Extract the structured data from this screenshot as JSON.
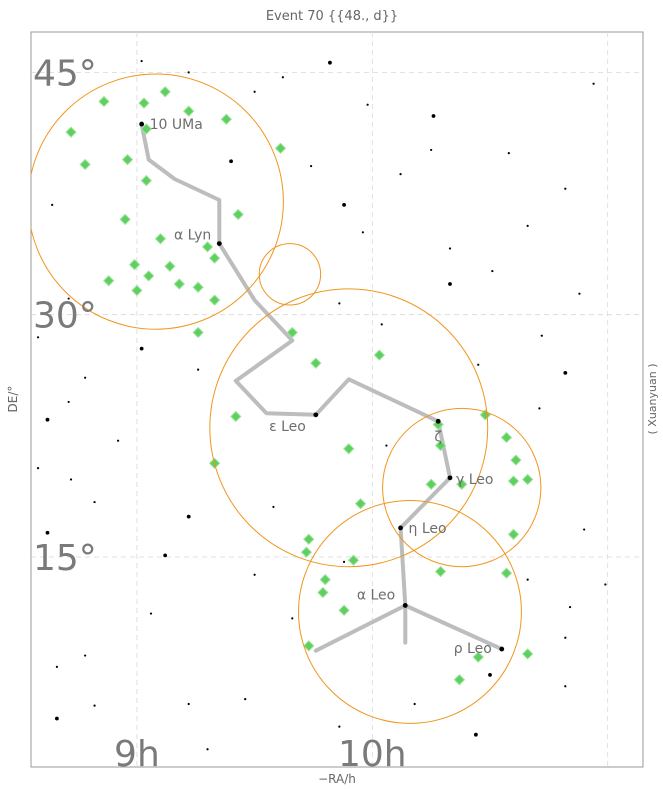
{
  "chart_data": {
    "type": "scatter",
    "title": "Event 70 {{48., d}}",
    "xlabel": "−RA/h",
    "ylabel": "DE/°",
    "side_label": "( Xuanyuan )",
    "ra_range": [
      8.55,
      11.15
    ],
    "de_range": [
      2.0,
      47.5
    ],
    "ra_ticks": [
      {
        "value": 10,
        "label": "10h"
      },
      {
        "value": 9,
        "label": "9h"
      }
    ],
    "de_ticks": [
      {
        "value": 45,
        "label": "45°"
      },
      {
        "value": 30,
        "label": "30°"
      },
      {
        "value": 15,
        "label": "15°"
      }
    ],
    "grid": "on",
    "colors": {
      "circle": "#f0961e",
      "event": "#5fcf5f",
      "line": "#bdbdbd",
      "star": "#000000",
      "grid": "#d8d8d8"
    },
    "named_stars": [
      {
        "label": "10 UMa",
        "ra": 9.02,
        "de": 41.8
      },
      {
        "label": "α Lyn",
        "ra": 9.35,
        "de": 34.4
      },
      {
        "label": "ε Leo",
        "ra": 9.76,
        "de": 23.8
      },
      {
        "label": "ζ",
        "ra": 10.28,
        "de": 23.4
      },
      {
        "label": "γ Leo",
        "ra": 10.33,
        "de": 19.9
      },
      {
        "label": "η Leo",
        "ra": 10.12,
        "de": 16.8
      },
      {
        "label": "α Leo",
        "ra": 10.14,
        "de": 12.0
      },
      {
        "label": "ρ Leo",
        "ra": 10.55,
        "de": 9.3
      }
    ],
    "constellation_lines": [
      [
        [
          9.02,
          41.8
        ],
        [
          9.05,
          39.6
        ],
        [
          9.16,
          38.4
        ],
        [
          9.35,
          37.1
        ],
        [
          9.35,
          34.4
        ],
        [
          9.5,
          30.9
        ],
        [
          9.66,
          28.4
        ],
        [
          9.42,
          25.9
        ],
        [
          9.55,
          23.9
        ],
        [
          9.76,
          23.8
        ],
        [
          9.9,
          26.0
        ],
        [
          10.28,
          23.4
        ],
        [
          10.33,
          19.9
        ],
        [
          10.12,
          16.8
        ],
        [
          10.14,
          12.0
        ],
        [
          10.55,
          9.3
        ]
      ],
      [
        [
          10.14,
          12.0
        ],
        [
          9.76,
          9.2
        ]
      ],
      [
        [
          10.14,
          12.0
        ],
        [
          10.14,
          9.7
        ]
      ]
    ],
    "circles": [
      {
        "ra": 9.08,
        "de": 37.0,
        "radius_deg": 7.9
      },
      {
        "ra": 9.65,
        "de": 32.5,
        "radius_deg": 1.9
      },
      {
        "ra": 9.9,
        "de": 23.0,
        "radius_deg": 8.6
      },
      {
        "ra": 10.38,
        "de": 19.3,
        "radius_deg": 4.9
      },
      {
        "ra": 10.16,
        "de": 11.6,
        "radius_deg": 6.9
      }
    ],
    "event_points": [
      [
        9.12,
        43.8
      ],
      [
        9.03,
        43.1
      ],
      [
        8.86,
        43.2
      ],
      [
        9.22,
        42.6
      ],
      [
        9.38,
        42.1
      ],
      [
        9.04,
        41.5
      ],
      [
        8.72,
        41.3
      ],
      [
        9.61,
        40.3
      ],
      [
        8.96,
        39.6
      ],
      [
        8.78,
        39.3
      ],
      [
        9.04,
        38.3
      ],
      [
        9.43,
        36.2
      ],
      [
        8.95,
        35.9
      ],
      [
        9.1,
        34.7
      ],
      [
        9.3,
        34.2
      ],
      [
        9.33,
        33.5
      ],
      [
        9.14,
        33.0
      ],
      [
        8.99,
        33.1
      ],
      [
        9.05,
        32.4
      ],
      [
        8.88,
        32.1
      ],
      [
        9.18,
        31.9
      ],
      [
        9.26,
        31.7
      ],
      [
        9.0,
        31.5
      ],
      [
        9.33,
        30.9
      ],
      [
        9.26,
        28.9
      ],
      [
        9.66,
        28.9
      ],
      [
        10.03,
        27.5
      ],
      [
        9.76,
        27.0
      ],
      [
        10.48,
        23.8
      ],
      [
        10.28,
        23.2
      ],
      [
        9.42,
        23.7
      ],
      [
        10.57,
        22.4
      ],
      [
        10.29,
        21.9
      ],
      [
        9.9,
        21.7
      ],
      [
        10.61,
        21.0
      ],
      [
        9.33,
        20.8
      ],
      [
        10.66,
        19.8
      ],
      [
        10.6,
        19.7
      ],
      [
        10.38,
        19.5
      ],
      [
        10.25,
        19.5
      ],
      [
        9.95,
        18.3
      ],
      [
        10.6,
        16.4
      ],
      [
        9.73,
        16.1
      ],
      [
        9.72,
        15.3
      ],
      [
        9.92,
        14.8
      ],
      [
        10.57,
        14.0
      ],
      [
        10.29,
        14.1
      ],
      [
        9.8,
        13.6
      ],
      [
        9.79,
        12.8
      ],
      [
        9.88,
        11.7
      ],
      [
        10.66,
        9.0
      ],
      [
        10.45,
        8.8
      ],
      [
        9.73,
        9.5
      ],
      [
        10.37,
        7.4
      ]
    ],
    "background_stars": [
      [
        9.82,
        45.6
      ],
      [
        9.02,
        45.7
      ],
      [
        10.94,
        44.3
      ],
      [
        9.5,
        43.8
      ],
      [
        9.98,
        43.0
      ],
      [
        10.26,
        42.3
      ],
      [
        10.58,
        40.0
      ],
      [
        10.25,
        40.2
      ],
      [
        9.74,
        39.2
      ],
      [
        10.82,
        37.8
      ],
      [
        9.88,
        36.8
      ],
      [
        10.66,
        35.5
      ],
      [
        10.33,
        34.1
      ],
      [
        9.96,
        35.1
      ],
      [
        10.51,
        32.7
      ],
      [
        10.33,
        31.9
      ],
      [
        10.88,
        31.3
      ],
      [
        9.86,
        30.7
      ],
      [
        8.71,
        31.0
      ],
      [
        8.58,
        28.6
      ],
      [
        10.82,
        26.4
      ],
      [
        10.71,
        24.2
      ],
      [
        10.45,
        26.9
      ],
      [
        8.78,
        26.1
      ],
      [
        8.71,
        24.6
      ],
      [
        8.62,
        23.5
      ],
      [
        8.92,
        22.2
      ],
      [
        9.26,
        26.6
      ],
      [
        8.58,
        20.5
      ],
      [
        8.82,
        18.4
      ],
      [
        8.62,
        16.5
      ],
      [
        10.9,
        16.7
      ],
      [
        10.66,
        13.6
      ],
      [
        10.84,
        11.9
      ],
      [
        10.82,
        10.0
      ],
      [
        10.5,
        7.7
      ],
      [
        10.82,
        7.0
      ],
      [
        8.66,
        8.2
      ],
      [
        8.78,
        8.9
      ],
      [
        8.82,
        5.8
      ],
      [
        8.66,
        5.0
      ],
      [
        9.22,
        5.9
      ],
      [
        9.46,
        6.2
      ],
      [
        9.86,
        4.5
      ],
      [
        10.18,
        5.9
      ],
      [
        10.44,
        4.0
      ],
      [
        9.3,
        3.1
      ],
      [
        8.92,
        3.0
      ],
      [
        9.5,
        13.9
      ],
      [
        9.06,
        11.5
      ],
      [
        9.22,
        17.5
      ],
      [
        9.58,
        18.1
      ],
      [
        9.66,
        11.2
      ],
      [
        9.88,
        14.7
      ],
      [
        10.06,
        21.9
      ],
      [
        9.02,
        27.9
      ],
      [
        10.04,
        29.4
      ],
      [
        10.72,
        28.7
      ],
      [
        9.22,
        45.0
      ],
      [
        10.12,
        38.7
      ],
      [
        9.4,
        39.5
      ],
      [
        9.62,
        44.7
      ],
      [
        10.99,
        13.3
      ],
      [
        8.64,
        36.8
      ],
      [
        8.72,
        19.8
      ],
      [
        9.12,
        15.1
      ]
    ]
  }
}
